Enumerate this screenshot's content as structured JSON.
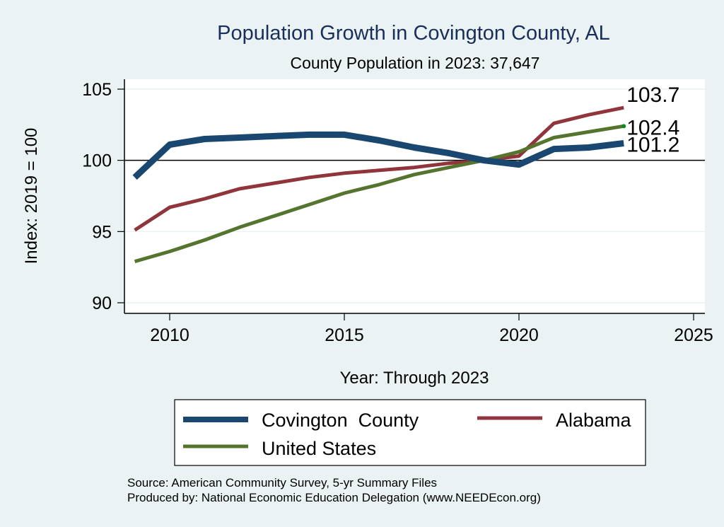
{
  "chart_data": {
    "type": "line",
    "title": "Population Growth in Covington County, AL",
    "subtitle": "County Population in 2023: 37,647",
    "xlabel": "Year: Through 2023",
    "ylabel": "Index: 2019 = 100",
    "xlim": [
      2008.7,
      2025.3
    ],
    "ylim": [
      89.2,
      105.7
    ],
    "xticks": [
      2010,
      2015,
      2020,
      2025
    ],
    "xtick_labels": [
      "2010",
      "2015",
      "2020",
      "2025"
    ],
    "yticks": [
      90,
      95,
      100,
      105
    ],
    "ytick_labels": [
      "90",
      "95",
      "100",
      "105"
    ],
    "reference_line": 100,
    "grid": true,
    "legend_position": "bottom",
    "x": [
      2009,
      2010,
      2011,
      2012,
      2013,
      2014,
      2015,
      2016,
      2017,
      2018,
      2019,
      2020,
      2021,
      2022,
      2023
    ],
    "series": [
      {
        "name": "Covington  County",
        "color": "#1a476f",
        "values": [
          98.8,
          101.1,
          101.5,
          101.6,
          101.7,
          101.8,
          101.8,
          101.4,
          100.9,
          100.5,
          100.0,
          99.7,
          100.8,
          100.9,
          101.2
        ],
        "end_label": "101.2"
      },
      {
        "name": "Alabama",
        "color": "#90353b",
        "values": [
          95.1,
          96.7,
          97.3,
          98.0,
          98.4,
          98.8,
          99.1,
          99.3,
          99.5,
          99.8,
          100.0,
          100.3,
          102.6,
          103.2,
          103.7
        ],
        "end_label": "103.7"
      },
      {
        "name": "United States",
        "color": "#55752f",
        "values": [
          92.9,
          93.6,
          94.4,
          95.3,
          96.1,
          96.9,
          97.7,
          98.3,
          99.0,
          99.5,
          100.0,
          100.6,
          101.6,
          102.0,
          102.4
        ],
        "end_label": "102.4"
      }
    ],
    "notes": [
      "Source: American Community Survey, 5-yr Summary Files",
      "Produced by: National Economic Education Delegation (www.NEEDEcon.org)"
    ]
  }
}
